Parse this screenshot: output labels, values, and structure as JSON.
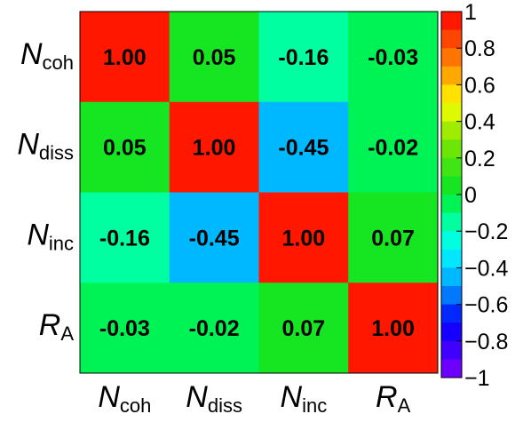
{
  "chart_data": {
    "type": "heatmap",
    "rows": [
      {
        "symbol": "N",
        "sub": "coh"
      },
      {
        "symbol": "N",
        "sub": "diss"
      },
      {
        "symbol": "N",
        "sub": "inc"
      },
      {
        "symbol": "R",
        "sub": "A"
      }
    ],
    "columns": [
      {
        "symbol": "N",
        "sub": "coh"
      },
      {
        "symbol": "N",
        "sub": "diss"
      },
      {
        "symbol": "N",
        "sub": "inc"
      },
      {
        "symbol": "R",
        "sub": "A"
      }
    ],
    "values": [
      [
        1.0,
        0.05,
        -0.16,
        -0.03
      ],
      [
        0.05,
        1.0,
        -0.45,
        -0.02
      ],
      [
        -0.16,
        -0.45,
        1.0,
        0.07
      ],
      [
        -0.03,
        -0.02,
        0.07,
        1.0
      ]
    ],
    "cell_labels": [
      [
        "1.00",
        "0.05",
        "-0.16",
        "-0.03"
      ],
      [
        "0.05",
        "1.00",
        "-0.45",
        "-0.02"
      ],
      [
        "-0.16",
        "-0.45",
        "1.00",
        "0.07"
      ],
      [
        "-0.03",
        "-0.02",
        "0.07",
        "1.00"
      ]
    ],
    "zlim": [
      -1,
      1
    ],
    "colorbar": {
      "ticks": [
        1,
        0.8,
        0.6,
        0.4,
        0.2,
        0,
        -0.2,
        -0.4,
        -0.6,
        -0.8,
        -1
      ],
      "tick_labels": [
        "1",
        "0.8",
        "0.6",
        "0.4",
        "0.2",
        "0",
        "−0.2",
        "−0.4",
        "−0.6",
        "−0.8",
        "−1"
      ],
      "bands": 20
    },
    "grid": false
  }
}
